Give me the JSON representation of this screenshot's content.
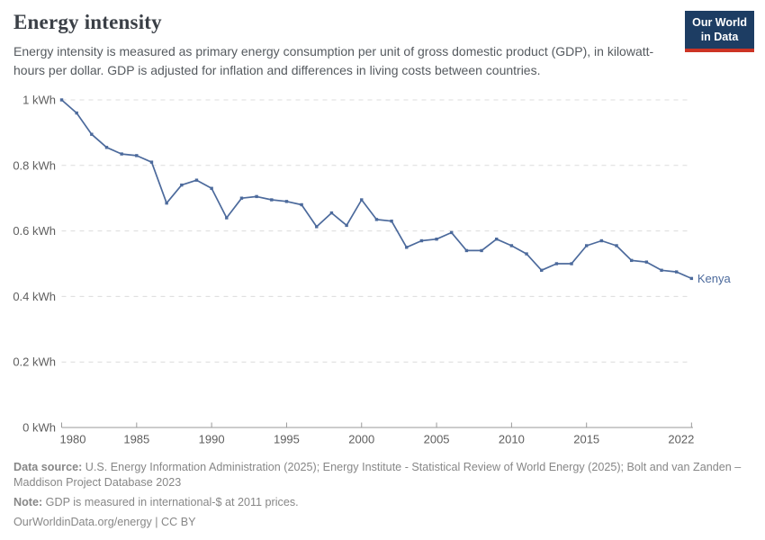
{
  "header": {
    "title": "Energy intensity",
    "subtitle": "Energy intensity is measured as primary energy consumption per unit of gross domestic product (GDP), in kilowatt-hours per dollar. GDP is adjusted for inflation and differences in living costs between countries.",
    "logo": {
      "line1": "Our World",
      "line2": "in Data",
      "bg_color": "#1d3d63",
      "accent_color": "#cc3425"
    }
  },
  "chart_data": {
    "type": "line",
    "title": "Energy intensity",
    "xlabel": "",
    "ylabel": "kWh per dollar",
    "xlim": [
      1980,
      2022
    ],
    "ylim": [
      0,
      1
    ],
    "grid": true,
    "x_ticks": [
      1980,
      1985,
      1990,
      1995,
      2000,
      2005,
      2010,
      2015,
      2022
    ],
    "y_ticks": [
      {
        "label": "1 kWh",
        "value": 1.0
      },
      {
        "label": "0.8 kWh",
        "value": 0.8
      },
      {
        "label": "0.6 kWh",
        "value": 0.6
      },
      {
        "label": "0.4 kWh",
        "value": 0.4
      },
      {
        "label": "0.2 kWh",
        "value": 0.2
      },
      {
        "label": "0 kWh",
        "value": 0.0
      }
    ],
    "series": [
      {
        "name": "Kenya",
        "color": "#4C6A9C",
        "x": [
          1980,
          1981,
          1982,
          1983,
          1984,
          1985,
          1986,
          1987,
          1988,
          1989,
          1990,
          1991,
          1992,
          1993,
          1994,
          1995,
          1996,
          1997,
          1998,
          1999,
          2000,
          2001,
          2002,
          2003,
          2004,
          2005,
          2006,
          2007,
          2008,
          2009,
          2010,
          2011,
          2012,
          2013,
          2014,
          2015,
          2016,
          2017,
          2018,
          2019,
          2020,
          2021,
          2022
        ],
        "values": [
          1.0,
          0.96,
          0.895,
          0.855,
          0.835,
          0.83,
          0.81,
          0.685,
          0.74,
          0.755,
          0.73,
          0.64,
          0.7,
          0.705,
          0.695,
          0.69,
          0.68,
          0.613,
          0.655,
          0.617,
          0.695,
          0.635,
          0.63,
          0.55,
          0.57,
          0.575,
          0.595,
          0.54,
          0.54,
          0.575,
          0.555,
          0.53,
          0.48,
          0.5,
          0.5,
          0.555,
          0.57,
          0.555,
          0.51,
          0.505,
          0.48,
          0.475,
          0.455
        ]
      }
    ],
    "legend_position": "end-of-line",
    "colors": {
      "gridline": "#dcdcdc",
      "axis": "#9a9a9a",
      "tick_label": "#5e5e5e"
    }
  },
  "footer": {
    "data_source_label": "Data source:",
    "data_source_text": " U.S. Energy Information Administration (2025); Energy Institute - Statistical Review of World Energy (2025); Bolt and van Zanden – Maddison Project Database 2023",
    "note_label": "Note:",
    "note_text": " GDP is measured in international-$ at 2011 prices.",
    "citation": "OurWorldinData.org/energy | CC BY"
  }
}
